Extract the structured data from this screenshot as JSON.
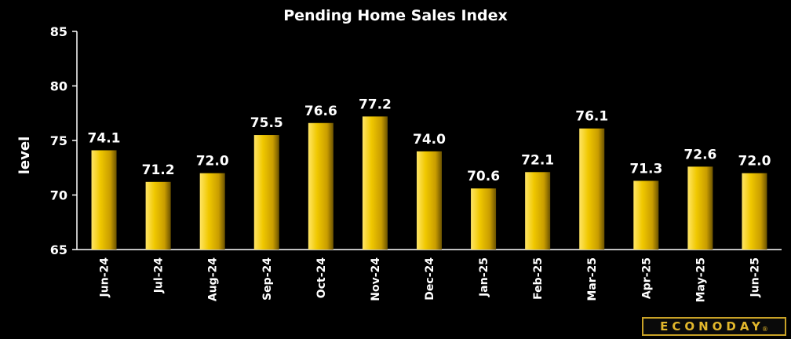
{
  "chart_data": {
    "type": "bar",
    "title": "Pending Home Sales Index",
    "xlabel": "",
    "ylabel": "level",
    "ylim": [
      65,
      85
    ],
    "yticks": [
      65,
      70,
      75,
      80,
      85
    ],
    "categories": [
      "Jun-24",
      "Jul-24",
      "Aug-24",
      "Sep-24",
      "Oct-24",
      "Nov-24",
      "Dec-24",
      "Jan-25",
      "Feb-25",
      "Mar-25",
      "Apr-25",
      "May-25",
      "Jun-25"
    ],
    "values": [
      74.1,
      71.2,
      72.0,
      75.5,
      76.6,
      77.2,
      74.0,
      70.6,
      72.1,
      76.1,
      71.3,
      72.6,
      72.0
    ],
    "value_labels": [
      "74.1",
      "71.2",
      "72.0",
      "75.5",
      "76.6",
      "77.2",
      "74.0",
      "70.6",
      "72.1",
      "76.1",
      "71.3",
      "72.6",
      "72.0"
    ],
    "grid": false,
    "colors": {
      "bar_light": "#ffe566",
      "bar_mid": "#f0c800",
      "bar_dark": "#6b5200",
      "axis": "#ffffff",
      "background": "#000000"
    }
  },
  "brand": {
    "name": "ECONODAY",
    "mark": "®"
  }
}
